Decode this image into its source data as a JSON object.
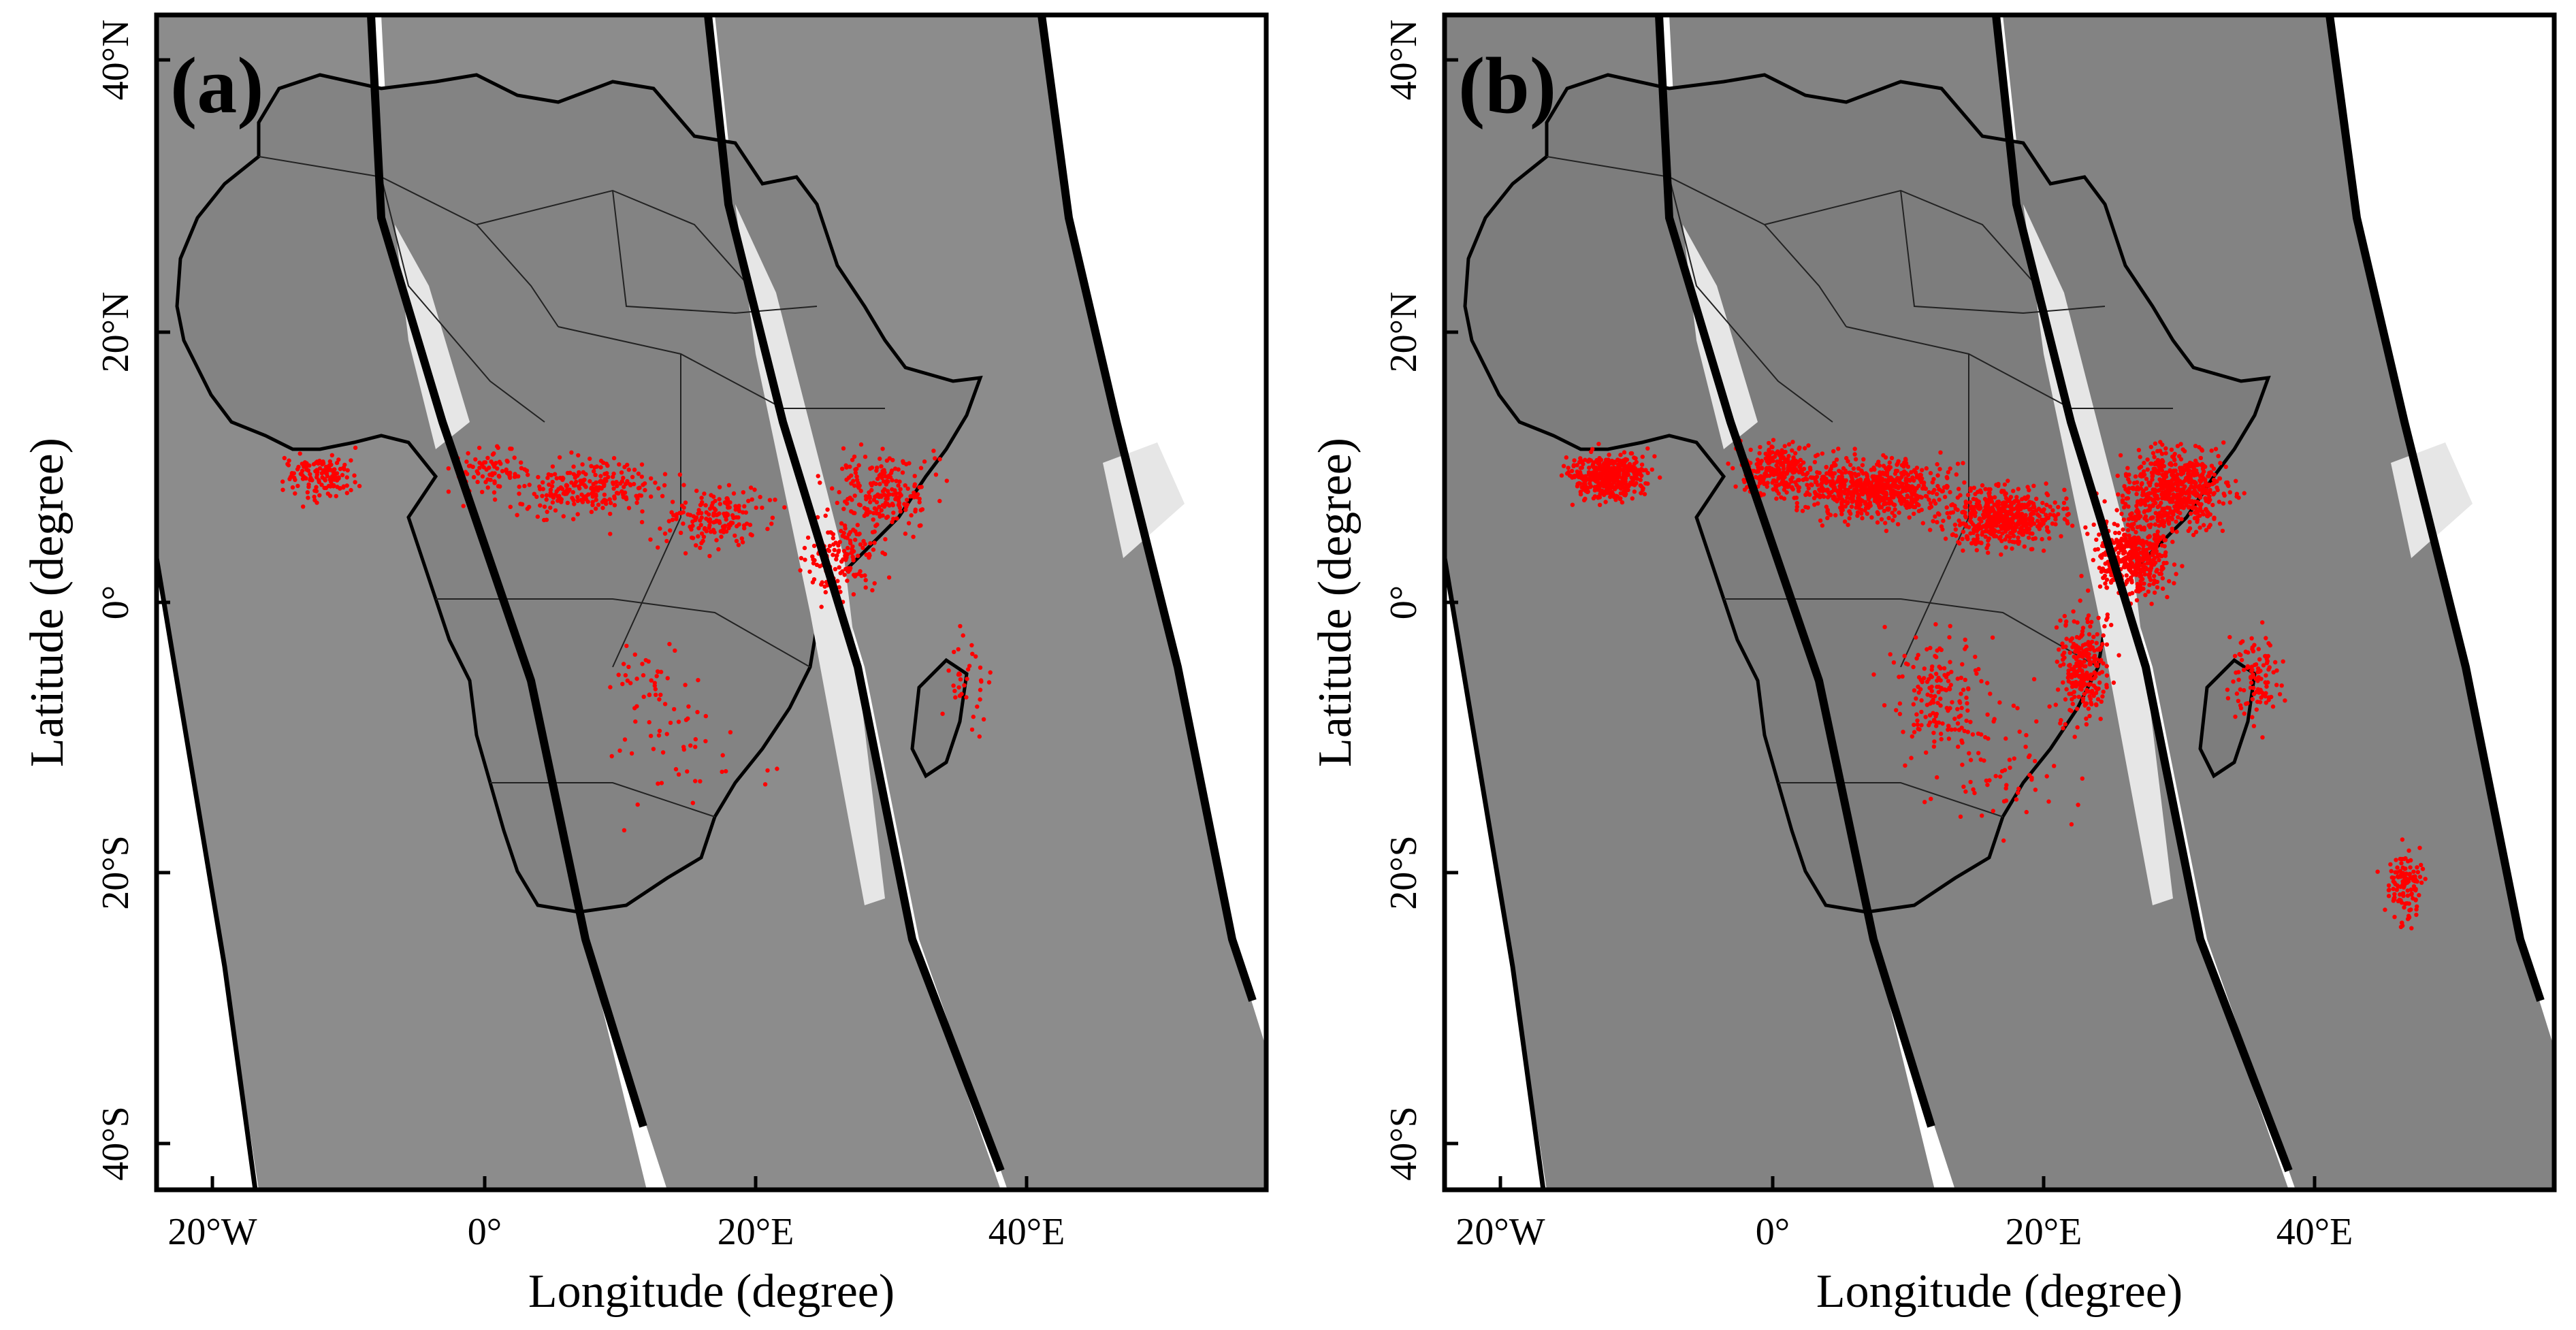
{
  "figure": {
    "panels": [
      {
        "label": "(a)",
        "xlabel": "Longitude (degree)",
        "ylabel": "Latitude (degree)",
        "x_ticks": [
          "20°W",
          "0°",
          "20°E",
          "40°E"
        ],
        "y_ticks": [
          "40°N",
          "20°N",
          "0°",
          "20°S",
          "40°S"
        ],
        "fire_density": "low"
      },
      {
        "label": "(b)",
        "xlabel": "Longitude (degree)",
        "ylabel": "Latitude (degree)",
        "x_ticks": [
          "20°W",
          "0°",
          "20°E",
          "40°E"
        ],
        "y_ticks": [
          "40°N",
          "20°N",
          "0°",
          "20°S",
          "40°S"
        ],
        "fire_density": "high"
      }
    ],
    "colors": {
      "swath": "#8c8c8c",
      "land": "#838383",
      "gap": "#e6e6e6",
      "point": "#ff0000",
      "outline": "#000000"
    }
  }
}
